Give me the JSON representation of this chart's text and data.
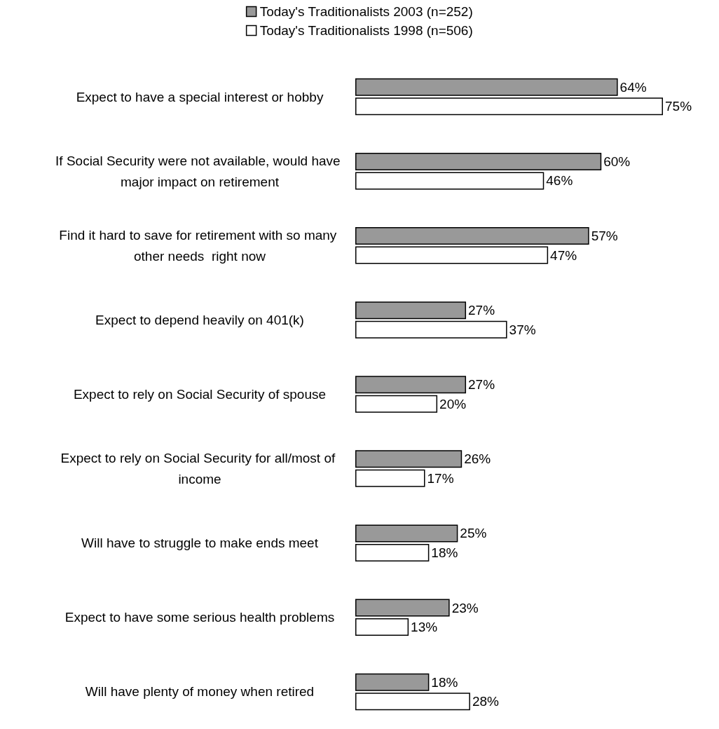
{
  "chart_data": {
    "type": "bar",
    "orientation": "horizontal",
    "legend": "top",
    "categories": [
      "Expect to have a special interest or hobby",
      "If Social Security were not available, would have major impact on retirement",
      "Find it hard to save for retirement with so many other needs  right now",
      "Expect to depend heavily on 401(k)",
      "Expect to rely on Social Security of spouse",
      "Expect to rely on Social Security for all/most of income",
      "Will have to struggle to make ends meet",
      "Expect to have some serious health problems",
      "Will have plenty of money when retired"
    ],
    "series": [
      {
        "name": "Today's Traditionalists 2003 (n=252)",
        "color": "#999999",
        "values": [
          64,
          60,
          57,
          27,
          27,
          26,
          25,
          23,
          18
        ],
        "value_labels": [
          "64%",
          "60%",
          "57%",
          "27%",
          "27%",
          "26%",
          "25%",
          "23%",
          "18%"
        ]
      },
      {
        "name": "Today's Traditionalists 1998 (n=506)",
        "color": "#ffffff",
        "values": [
          75,
          46,
          47,
          37,
          20,
          17,
          18,
          13,
          28
        ],
        "value_labels": [
          "75%",
          "46%",
          "47%",
          "37%",
          "20%",
          "17%",
          "18%",
          "13%",
          "28%"
        ]
      }
    ]
  }
}
